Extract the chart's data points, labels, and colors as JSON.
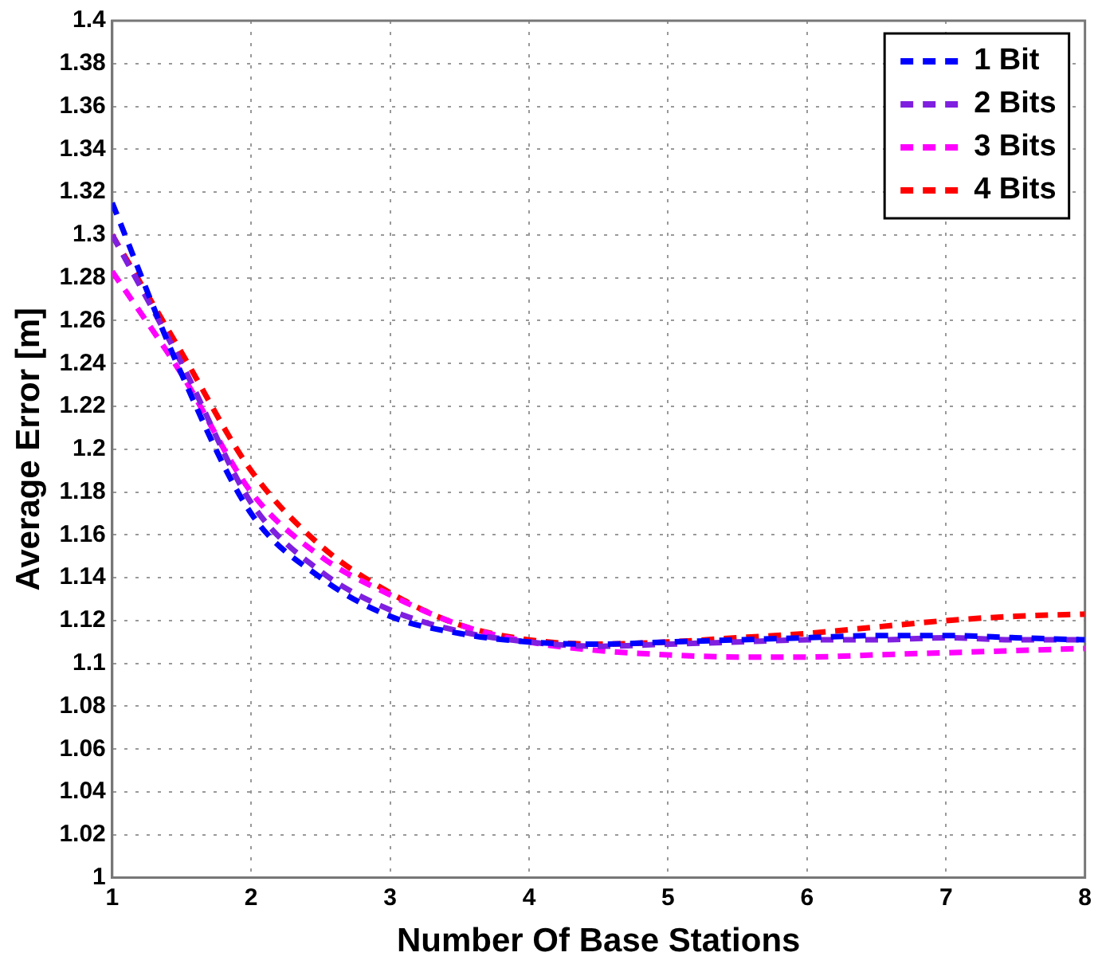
{
  "chart_data": {
    "type": "line",
    "xlabel": "Number Of Base Stations",
    "ylabel": "Average Error [m]",
    "x": [
      1,
      1.5,
      2,
      2.5,
      3,
      3.5,
      4,
      4.5,
      5,
      5.5,
      6,
      6.5,
      7,
      7.5,
      8
    ],
    "series": [
      {
        "name": "1 Bit",
        "color": "#0000ff",
        "line_style": "dashed",
        "values": [
          1.315,
          1.235,
          1.17,
          1.14,
          1.122,
          1.114,
          1.11,
          1.109,
          1.11,
          1.111,
          1.112,
          1.113,
          1.113,
          1.112,
          1.111
        ]
      },
      {
        "name": "2 Bits",
        "color": "#7f1fdf",
        "line_style": "dashed",
        "values": [
          1.3,
          1.24,
          1.175,
          1.143,
          1.125,
          1.115,
          1.11,
          1.108,
          1.109,
          1.11,
          1.111,
          1.111,
          1.112,
          1.111,
          1.111
        ]
      },
      {
        "name": "3 Bits",
        "color": "#ff00ff",
        "line_style": "dashed",
        "values": [
          1.283,
          1.235,
          1.18,
          1.15,
          1.132,
          1.118,
          1.11,
          1.106,
          1.104,
          1.103,
          1.103,
          1.104,
          1.105,
          1.106,
          1.107
        ]
      },
      {
        "name": "4 Bits",
        "color": "#ff0000",
        "line_style": "dashed",
        "values": [
          1.3,
          1.245,
          1.19,
          1.155,
          1.133,
          1.118,
          1.111,
          1.109,
          1.11,
          1.112,
          1.114,
          1.117,
          1.12,
          1.122,
          1.123
        ]
      }
    ],
    "xlim": [
      1,
      8
    ],
    "xticks": [
      1,
      2,
      3,
      4,
      5,
      6,
      7,
      8
    ],
    "ylim": [
      1,
      1.4
    ],
    "yticks": [
      1,
      1.02,
      1.04,
      1.06,
      1.08,
      1.1,
      1.12,
      1.14,
      1.16,
      1.18,
      1.2,
      1.22,
      1.24,
      1.26,
      1.28,
      1.3,
      1.32,
      1.34,
      1.36,
      1.38,
      1.4
    ],
    "grid": true,
    "legend": "top right",
    "marker": "none"
  }
}
